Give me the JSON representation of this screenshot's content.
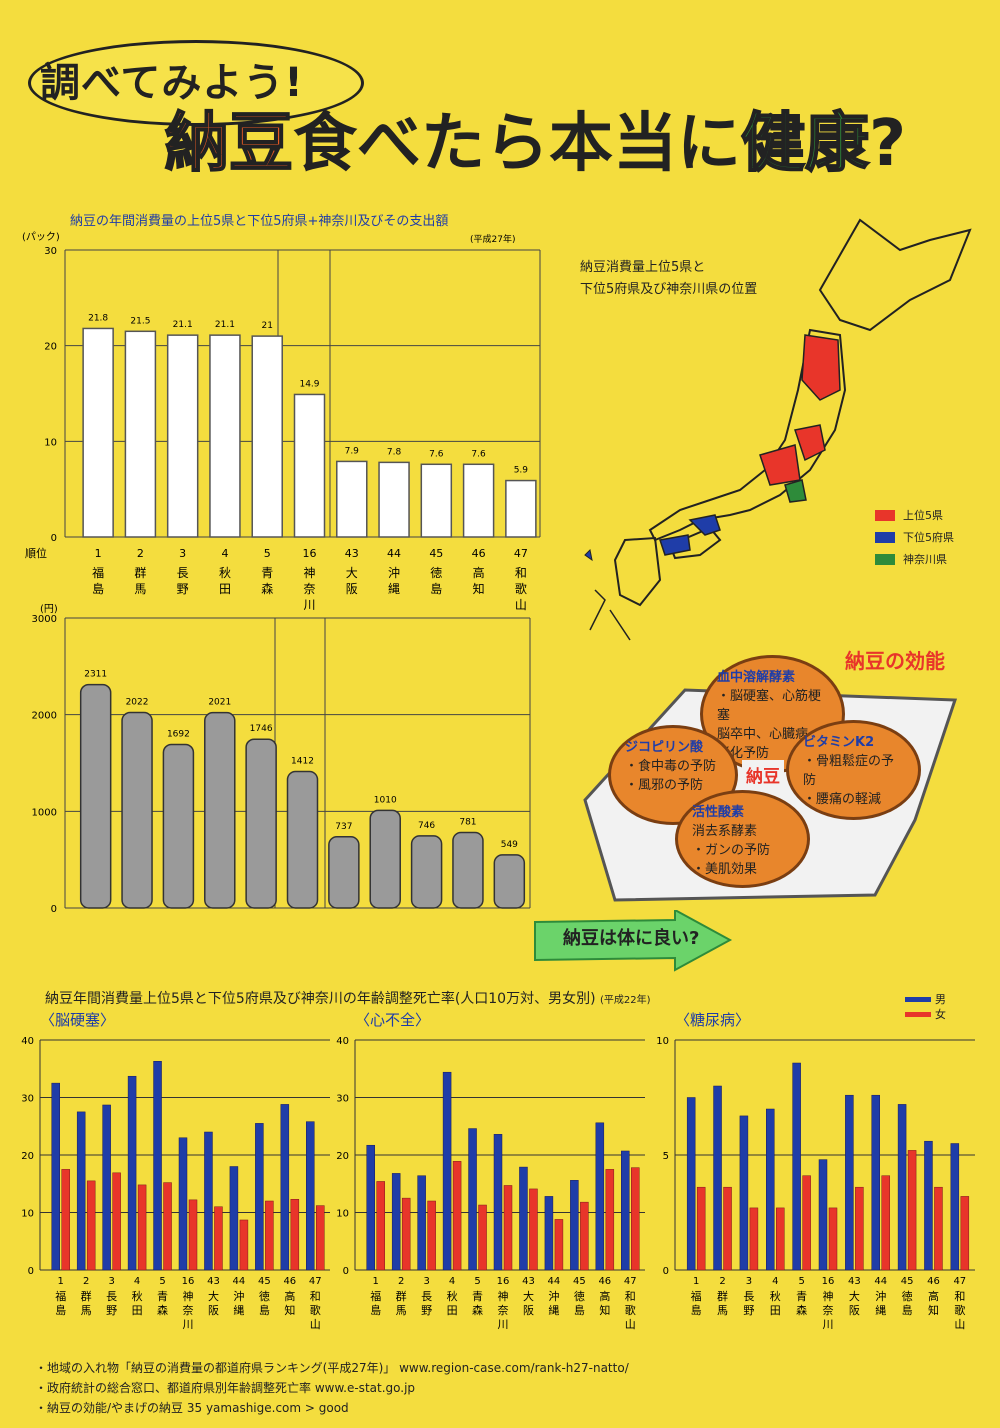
{
  "header": {
    "bubble": "調べてみよう!",
    "title_natto": "納豆",
    "title_mid": "食べたら本当に",
    "title_kenkou": "健康",
    "title_q": "?"
  },
  "map": {
    "caption_line1": "納豆消費量上位5県と",
    "caption_line2": "下位5府県及び神奈川県の位置",
    "legend": [
      {
        "label": "上位5県",
        "color": "#e8352a"
      },
      {
        "label": "下位5府県",
        "color": "#1f3da8"
      },
      {
        "label": "神奈川県",
        "color": "#2e8b3a"
      }
    ]
  },
  "effects": {
    "title": "納豆の効能",
    "center": "納豆",
    "items": [
      {
        "head": "血中溶解酵素",
        "lines": [
          "・脳硬塞、心筋梗塞",
          "脳卒中、心臓病、",
          "老化予防"
        ]
      },
      {
        "head": "ジコピリン酸",
        "lines": [
          "・食中毒の予防",
          "・風邪の予防"
        ]
      },
      {
        "head": "ビタミンK2",
        "lines": [
          "・骨粗鬆症の予防",
          "・腰痛の軽減"
        ]
      },
      {
        "head": "活性酸素",
        "lines": [
          "消去系酵素",
          "・ガンの予防",
          "・美肌効果"
        ]
      }
    ],
    "arrow_text": "納豆は体に良い?"
  },
  "sources": [
    "・地域の入れ物「納豆の消費量の都道府県ランキング(平成27年)」 www.region-case.com/rank-h27-natto/",
    "・政府統計の総合窓口、都道府県別年齢調整死亡率 www.e-stat.go.jp",
    "・納豆の効能/やまげの納豆 35 yamashige.com > good"
  ],
  "chart_data": [
    {
      "type": "bar",
      "title": "納豆の年間消費量の上位5県と下位5府県+神奈川及びその支出額",
      "note": "(平成27年)",
      "ylabel": "(パック)",
      "ylim": [
        0,
        30
      ],
      "yticks": [
        0,
        10,
        20,
        30
      ],
      "rank_label": "順位",
      "ranks": [
        "1",
        "2",
        "3",
        "4",
        "5",
        "16",
        "43",
        "44",
        "45",
        "46",
        "47"
      ],
      "categories": [
        "福島",
        "群馬",
        "長野",
        "秋田",
        "青森",
        "神奈川",
        "大阪",
        "沖縄",
        "徳島",
        "高知",
        "和歌山"
      ],
      "values": [
        21.8,
        21.5,
        21.1,
        21.1,
        21.0,
        14.9,
        7.9,
        7.8,
        7.6,
        7.6,
        5.9
      ]
    },
    {
      "type": "bar",
      "ylabel": "(円)",
      "ylim": [
        0,
        3000
      ],
      "yticks": [
        0,
        1000,
        2000,
        3000
      ],
      "categories": [
        "福島",
        "群馬",
        "長野",
        "秋田",
        "青森",
        "神奈川",
        "大阪",
        "沖縄",
        "徳島",
        "高知",
        "和歌山"
      ],
      "values": [
        2311,
        2022,
        1692,
        2021,
        1746,
        1412,
        737,
        1010,
        746,
        781,
        549
      ]
    },
    {
      "type": "bar",
      "title": "納豆年間消費量上位5県と下位5府県及び神奈川の年齢調整死亡率(人口10万対、男女別)",
      "note": "(平成22年)",
      "legend": [
        {
          "name": "男",
          "color": "#1f3da8"
        },
        {
          "name": "女",
          "color": "#e8352a"
        }
      ],
      "panels": [
        {
          "subtitle": "〈脳硬塞〉",
          "ylim": [
            0,
            40
          ],
          "yticks": [
            0,
            10,
            20,
            30,
            40
          ],
          "ranks": [
            "1",
            "2",
            "3",
            "4",
            "5",
            "16",
            "43",
            "44",
            "45",
            "46",
            "47"
          ],
          "categories": [
            "福島",
            "群馬",
            "長野",
            "秋田",
            "青森",
            "神奈川",
            "大阪",
            "沖縄",
            "徳島",
            "高知",
            "和歌山"
          ],
          "series": [
            {
              "name": "男",
              "values": [
                32.5,
                27.5,
                28.7,
                33.7,
                36.3,
                23.0,
                24.0,
                18.0,
                25.5,
                28.8,
                25.8
              ]
            },
            {
              "name": "女",
              "values": [
                17.5,
                15.5,
                16.9,
                14.8,
                15.2,
                12.2,
                11.0,
                8.7,
                12.0,
                12.3,
                11.2
              ]
            }
          ]
        },
        {
          "subtitle": "〈心不全〉",
          "ylim": [
            0,
            40
          ],
          "yticks": [
            0,
            10,
            20,
            30,
            40
          ],
          "ranks": [
            "1",
            "2",
            "3",
            "4",
            "5",
            "16",
            "43",
            "44",
            "45",
            "46",
            "47"
          ],
          "categories": [
            "福島",
            "群馬",
            "長野",
            "秋田",
            "青森",
            "神奈川",
            "大阪",
            "沖縄",
            "徳島",
            "高知",
            "和歌山"
          ],
          "series": [
            {
              "name": "男",
              "values": [
                21.7,
                16.8,
                16.4,
                34.4,
                24.6,
                23.6,
                17.9,
                12.8,
                15.6,
                25.6,
                20.7
              ]
            },
            {
              "name": "女",
              "values": [
                15.4,
                12.5,
                12.0,
                18.9,
                11.3,
                14.7,
                14.1,
                8.8,
                11.8,
                17.5,
                17.8
              ]
            }
          ]
        },
        {
          "subtitle": "〈糖尿病〉",
          "ylim": [
            0,
            10
          ],
          "yticks": [
            0,
            5,
            10
          ],
          "ranks": [
            "1",
            "2",
            "3",
            "4",
            "5",
            "16",
            "43",
            "44",
            "45",
            "46",
            "47"
          ],
          "categories": [
            "福島",
            "群馬",
            "長野",
            "秋田",
            "青森",
            "神奈川",
            "大阪",
            "沖縄",
            "徳島",
            "高知",
            "和歌山"
          ],
          "series": [
            {
              "name": "男",
              "values": [
                7.5,
                8.0,
                6.7,
                7.0,
                9.0,
                4.8,
                7.6,
                7.6,
                7.2,
                5.6,
                5.5
              ]
            },
            {
              "name": "女",
              "values": [
                3.6,
                3.6,
                2.7,
                2.7,
                4.1,
                2.7,
                3.6,
                4.1,
                5.2,
                3.6,
                3.2
              ]
            }
          ]
        }
      ]
    }
  ]
}
